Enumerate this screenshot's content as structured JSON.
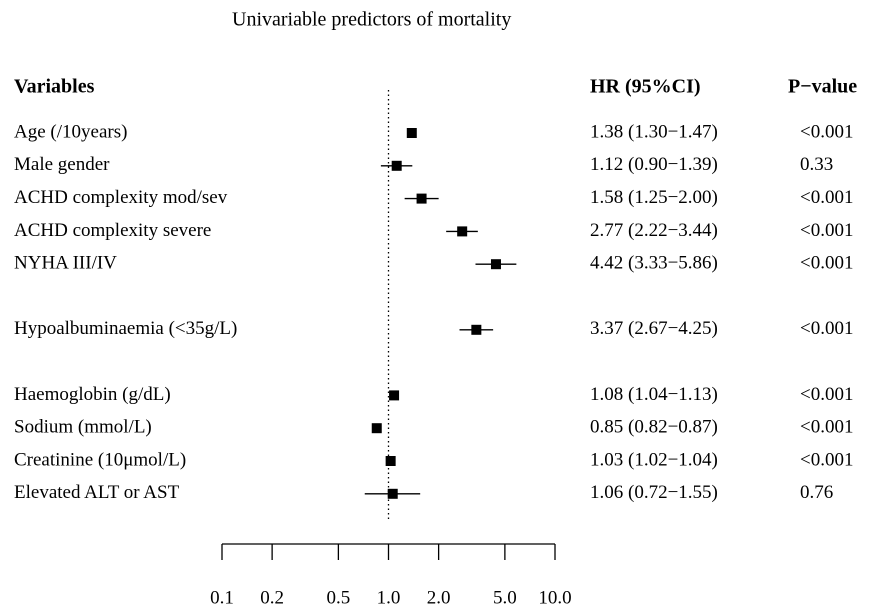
{
  "chart_data": {
    "type": "forest",
    "title": "Univariable predictors of mortality",
    "headers": [
      "Variables",
      "HR (95%CI)",
      "P−value"
    ],
    "categories": [
      "Age (/10years)",
      "Male gender",
      "ACHD complexity mod/sev",
      "ACHD complexity severe",
      "NYHA III/IV",
      null,
      "Hypoalbuminaemia (<35g/L)",
      null,
      "Haemoglobin (g/dL)",
      "Sodium (mmol/L)",
      "Creatinine (10μmol/L)",
      "Elevated ALT or AST"
    ],
    "values": [
      1.38,
      1.12,
      1.58,
      2.77,
      4.42,
      null,
      3.37,
      null,
      1.08,
      0.85,
      1.03,
      1.06
    ],
    "lower": [
      1.3,
      0.9,
      1.25,
      2.22,
      3.33,
      null,
      2.67,
      null,
      1.04,
      0.82,
      1.02,
      0.72
    ],
    "upper": [
      1.47,
      1.39,
      2.0,
      3.44,
      5.86,
      null,
      4.25,
      null,
      1.13,
      0.87,
      1.04,
      1.55
    ],
    "value_labels": [
      "1.38 (1.30−1.47)",
      "1.12 (0.90−1.39)",
      "1.58 (1.25−2.00)",
      "2.77 (2.22−3.44)",
      "4.42 (3.33−5.86)",
      null,
      "3.37 (2.67−4.25)",
      null,
      "1.08 (1.04−1.13)",
      "0.85 (0.82−0.87)",
      "1.03 (1.02−1.04)",
      "1.06 (0.72−1.55)"
    ],
    "p_values": [
      "<0.001",
      "0.33",
      "<0.001",
      "<0.001",
      "<0.001",
      null,
      "<0.001",
      null,
      "<0.001",
      "<0.001",
      "<0.001",
      "0.76"
    ],
    "xlim": [
      0.1,
      10
    ],
    "xscale": "log",
    "xticks": [
      0.1,
      0.2,
      0.5,
      {
        "value": 1,
        "label": "1.0"
      },
      {
        "value": 2,
        "label": "2.0"
      },
      {
        "value": 5,
        "label": "5.0"
      },
      {
        "value": 10,
        "label": "10.0"
      }
    ],
    "reference_line": 1,
    "color": "#000000"
  }
}
